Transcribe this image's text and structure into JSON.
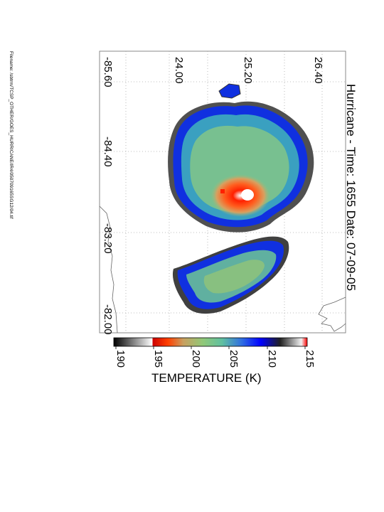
{
  "title": "Hurricane - Time: 1655 Date: 07-09-05",
  "filename": "Filename: /sbtrm/TCSP_OTHER/GOES_HURRICANE/IR4/050709165SG12/04.tif",
  "latitude_labels": [
    "24.00",
    "25.20",
    "26.40"
  ],
  "longitude_labels": [
    "-85.60",
    "-84.40",
    "-83.20",
    "-82.00"
  ],
  "colorbar": {
    "title": "TEMPERATURE (K)",
    "ticks": [
      "190",
      "195",
      "200",
      "205",
      "210",
      "215"
    ],
    "colors": [
      "#ffffff",
      "#ff0000",
      "#ff8000",
      "#ffff00",
      "#80ff80",
      "#00c0a0",
      "#0040ff",
      "#000000",
      "#ffffff"
    ]
  }
}
